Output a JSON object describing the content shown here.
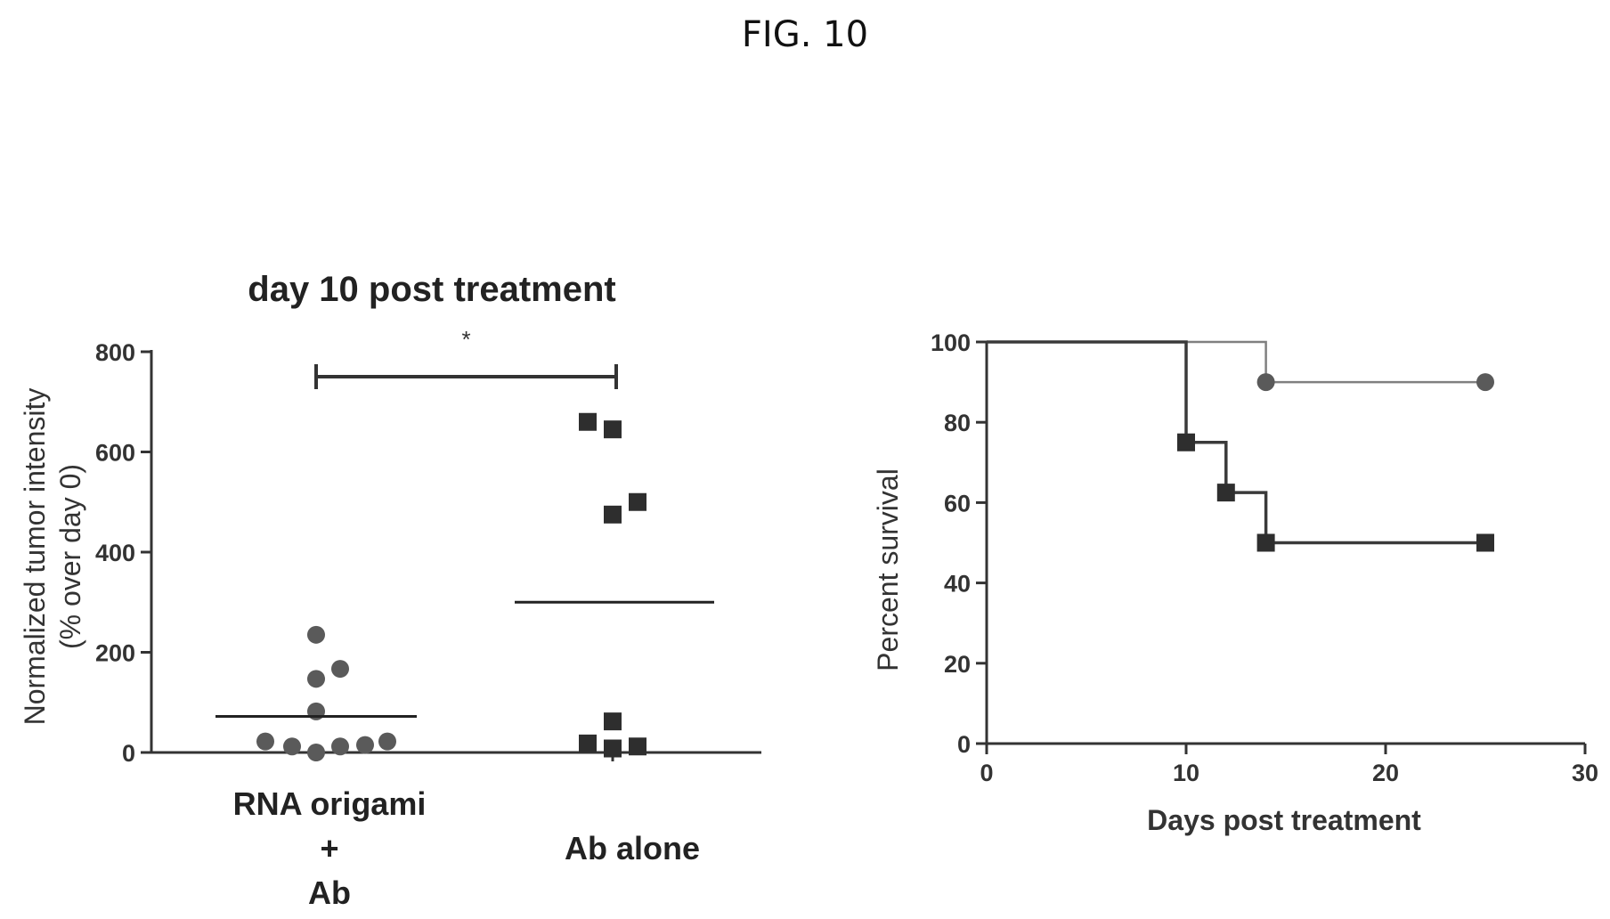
{
  "figure_label": "FIG. 10",
  "colors": {
    "axis": "#333333",
    "series_circle": "#5a5a5a",
    "series_square": "#2e2e2e",
    "line_gray": "#808080",
    "line_dark": "#3a3a3a"
  },
  "chart_data": [
    {
      "type": "scatter",
      "title": "day 10 post treatment",
      "ylabel_line1": "Normalized tumor intensity",
      "ylabel_line2": "(% over day 0)",
      "ylim": [
        0,
        800
      ],
      "yticks": [
        0,
        200,
        400,
        600,
        800
      ],
      "ytick_labels": [
        "0",
        "200",
        "400",
        "600",
        "800"
      ],
      "categories": [
        {
          "label_lines": [
            "RNA origami",
            "+",
            "Ab"
          ]
        },
        {
          "label_lines": [
            "Ab alone"
          ]
        }
      ],
      "series": [
        {
          "category": 0,
          "marker": "circle",
          "values": [
            235,
            167,
            147,
            82,
            22,
            12,
            0,
            12,
            15,
            22
          ],
          "mean": 72
        },
        {
          "category": 1,
          "marker": "square",
          "values": [
            660,
            645,
            500,
            475,
            62,
            18,
            8,
            12
          ],
          "mean": 300
        }
      ],
      "significance": {
        "between": [
          0,
          1
        ],
        "label": "*"
      }
    },
    {
      "type": "line",
      "step": true,
      "xlabel": "Days post treatment",
      "ylabel": "Percent survival",
      "xlim": [
        0,
        30
      ],
      "ylim": [
        0,
        100
      ],
      "xticks": [
        0,
        10,
        20,
        30
      ],
      "xtick_labels": [
        "0",
        "10",
        "20",
        "30"
      ],
      "yticks": [
        0,
        20,
        40,
        60,
        80,
        100
      ],
      "ytick_labels": [
        "0",
        "20",
        "40",
        "60",
        "80",
        "100"
      ],
      "series": [
        {
          "marker": "circle",
          "x": [
            0,
            14,
            25
          ],
          "y": [
            100,
            90,
            90
          ],
          "marker_x": [
            14,
            25
          ],
          "marker_y": [
            90,
            90
          ]
        },
        {
          "marker": "square",
          "x": [
            0,
            10,
            12,
            14,
            25
          ],
          "y": [
            100,
            75,
            62.5,
            50,
            50
          ],
          "marker_x": [
            10,
            12,
            14,
            25
          ],
          "marker_y": [
            75,
            62.5,
            50,
            50
          ]
        }
      ]
    }
  ]
}
